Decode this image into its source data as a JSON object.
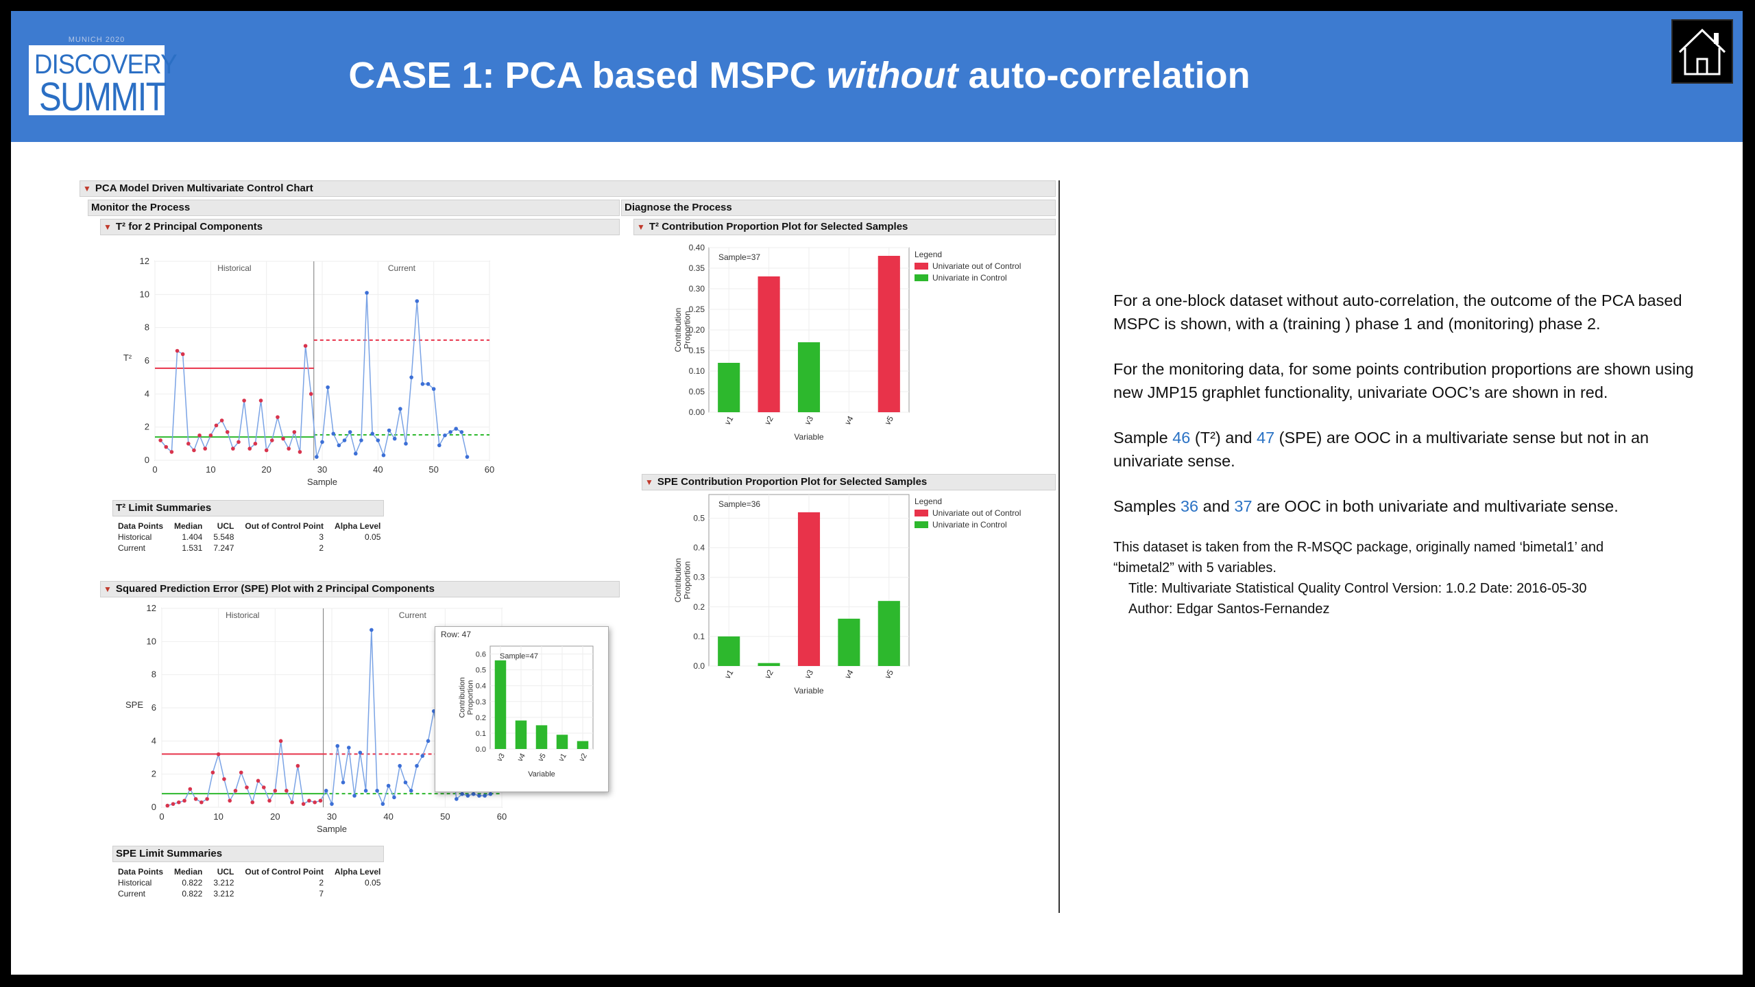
{
  "header": {
    "logo": {
      "line1": "DISCOVERY",
      "line2": "SUMMIT",
      "caption": "MUNICH 2020"
    },
    "title_pre": "CASE 1: PCA based MSPC ",
    "title_italic": "without",
    "title_post": " auto-correlation",
    "home_icon": "home-icon"
  },
  "jmp": {
    "main_title": "PCA Model Driven Multivariate Control Chart",
    "monitor_title": "Monitor the Process",
    "diagnose_title": "Diagnose the Process",
    "t2_chart_title": "T² for 2 Principal Components",
    "t2_limit_title": "T² Limit Summaries",
    "spe_chart_title": "Squared Prediction Error (SPE) Plot with 2 Principal Components",
    "spe_limit_title": "SPE Limit Summaries",
    "t2_contrib_title": "T² Contribution Proportion Plot for Selected Samples",
    "spe_contrib_title": "SPE Contribution Proportion Plot for Selected Samples",
    "limit_headers": [
      "Data Points",
      "Median",
      "UCL",
      "Out of Control Point",
      "Alpha Level"
    ],
    "t2_limits": [
      [
        "Historical",
        "1.404",
        "5.548",
        "3",
        "0.05"
      ],
      [
        "Current",
        "1.531",
        "7.247",
        "2",
        ""
      ]
    ],
    "spe_limits": [
      [
        "Historical",
        "0.822",
        "3.212",
        "2",
        "0.05"
      ],
      [
        "Current",
        "0.822",
        "3.212",
        "7",
        ""
      ]
    ],
    "popup_row": "Row: 47"
  },
  "notes": {
    "p1": "For a one-block dataset without auto-correlation, the outcome of the PCA based MSPC is shown, with a (training ) phase 1 and (monitoring) phase 2.",
    "p2": "For the monitoring data, for some points contribution proportions are shown using new JMP15 graphlet functionality, univariate OOC’s are shown in red.",
    "p3_a": "Sample ",
    "p3_n1": "46",
    "p3_b": " (T²) and ",
    "p3_n2": "47",
    "p3_c": " (SPE) are OOC in a multivariate sense but not in an univariate sense.",
    "p4_a": "Samples ",
    "p4_n1": "36",
    "p4_b": " and ",
    "p4_n2": "37",
    "p4_c": " are OOC in both univariate and multivariate sense.",
    "s1": "This dataset is taken from the R-MSQC package, originally named ‘bimetal1’ and",
    "s2": "“bimetal2” with 5 variables.",
    "s3": "Title: Multivariate Statistical Quality Control Version: 1.0.2 Date: 2016-05-30",
    "s4": "Author: Edgar Santos-Fernandez"
  },
  "colors": {
    "header": "#3d7bd0",
    "ooc": "#e8334a",
    "inctrl": "#2db82d",
    "series": "#7aa3e5"
  },
  "chart_data": [
    {
      "type": "line",
      "title": "T² for 2 Principal Components",
      "xlabel": "Sample",
      "ylabel": "T²",
      "phase_labels": [
        "Historical",
        "Current"
      ],
      "phase_split": 28.5,
      "xlim": [
        0,
        60
      ],
      "ylim": [
        0,
        12
      ],
      "xticks": [
        0,
        10,
        20,
        30,
        40,
        50,
        60
      ],
      "yticks": [
        0,
        2,
        4,
        6,
        8,
        10,
        12
      ],
      "ucl": {
        "historical": 5.548,
        "current": 7.247
      },
      "median": {
        "historical": 1.404,
        "current": 1.531
      },
      "values": [
        1.2,
        0.8,
        0.5,
        6.6,
        6.4,
        1.0,
        0.6,
        1.5,
        0.7,
        1.5,
        2.1,
        2.4,
        1.7,
        0.7,
        1.1,
        3.6,
        0.7,
        1.0,
        3.6,
        0.6,
        1.2,
        2.6,
        1.3,
        0.7,
        1.7,
        0.5,
        6.9,
        4.0,
        0.2,
        1.1,
        4.4,
        1.6,
        0.9,
        1.2,
        1.7,
        0.4,
        1.2,
        10.1,
        1.6,
        1.2,
        0.3,
        1.8,
        1.3,
        3.1,
        1.0,
        5.0,
        9.6,
        4.6,
        4.6,
        4.3,
        0.9,
        1.5,
        1.7,
        1.9,
        1.7,
        0.2
      ]
    },
    {
      "type": "line",
      "title": "Squared Prediction Error (SPE) Plot with 2 Principal Components",
      "xlabel": "Sample",
      "ylabel": "SPE",
      "phase_labels": [
        "Historical",
        "Current"
      ],
      "phase_split": 28.5,
      "xlim": [
        0,
        60
      ],
      "ylim": [
        0,
        12
      ],
      "xticks": [
        0,
        10,
        20,
        30,
        40,
        50,
        60
      ],
      "yticks": [
        0,
        2,
        4,
        6,
        8,
        10,
        12
      ],
      "ucl": {
        "historical": 3.212,
        "current": 3.212
      },
      "median": {
        "historical": 0.822,
        "current": 0.822
      },
      "values": [
        0.1,
        0.2,
        0.3,
        0.4,
        1.1,
        0.5,
        0.3,
        0.5,
        2.1,
        3.2,
        1.7,
        0.4,
        1.0,
        2.1,
        1.2,
        0.3,
        1.6,
        1.2,
        0.4,
        1.0,
        4.0,
        1.0,
        0.3,
        2.5,
        0.2,
        0.4,
        0.3,
        0.4,
        1.0,
        0.2,
        3.7,
        1.5,
        3.6,
        0.7,
        3.3,
        1.0,
        10.7,
        1.0,
        0.2,
        1.3,
        0.6,
        2.5,
        1.5,
        1.0,
        2.5,
        3.1,
        4.0,
        5.8,
        3.7,
        6.0,
        3.0,
        0.5,
        0.8,
        0.7,
        0.8,
        0.7,
        0.7,
        0.8
      ]
    },
    {
      "type": "bar",
      "title": "T² Contribution Proportion Plot for Selected Samples",
      "sample_label": "Sample=37",
      "xlabel": "Variable",
      "ylabel": "Contribution Proportion",
      "categories": [
        "v1",
        "v2",
        "v3",
        "v4",
        "v5"
      ],
      "values": [
        0.12,
        0.33,
        0.17,
        0.0,
        0.38
      ],
      "ooc": [
        false,
        true,
        false,
        false,
        true
      ],
      "ylim": [
        0,
        0.4
      ],
      "yticks": [
        "0.00",
        "0.05",
        "0.10",
        "0.15",
        "0.20",
        "0.25",
        "0.30",
        "0.35",
        "0.40"
      ],
      "legend_title": "Legend",
      "legend": [
        "Univariate out of Control",
        "Univariate in Control"
      ]
    },
    {
      "type": "bar",
      "title": "SPE Contribution Proportion Plot for Selected Samples",
      "sample_label": "Sample=36",
      "xlabel": "Variable",
      "ylabel": "Contribution Proportion",
      "categories": [
        "v1",
        "v2",
        "v3",
        "v4",
        "v5"
      ],
      "values": [
        0.1,
        0.01,
        0.52,
        0.16,
        0.22
      ],
      "ooc": [
        false,
        false,
        true,
        false,
        false
      ],
      "ylim": [
        0,
        0.58
      ],
      "yticks": [
        "0.0",
        "0.1",
        "0.2",
        "0.3",
        "0.4",
        "0.5"
      ],
      "legend_title": "Legend",
      "legend": [
        "Univariate out of Control",
        "Univariate in Control"
      ]
    },
    {
      "type": "bar",
      "title": "Row: 47",
      "sample_label": "Sample=47",
      "xlabel": "Variable",
      "ylabel": "Contribution Proportion",
      "categories": [
        "v3",
        "v4",
        "v5",
        "v1",
        "v2"
      ],
      "values": [
        0.56,
        0.18,
        0.15,
        0.09,
        0.05
      ],
      "ylim": [
        0,
        0.65
      ],
      "yticks": [
        "0.0",
        "0.1",
        "0.2",
        "0.3",
        "0.4",
        "0.5",
        "0.6"
      ]
    }
  ]
}
